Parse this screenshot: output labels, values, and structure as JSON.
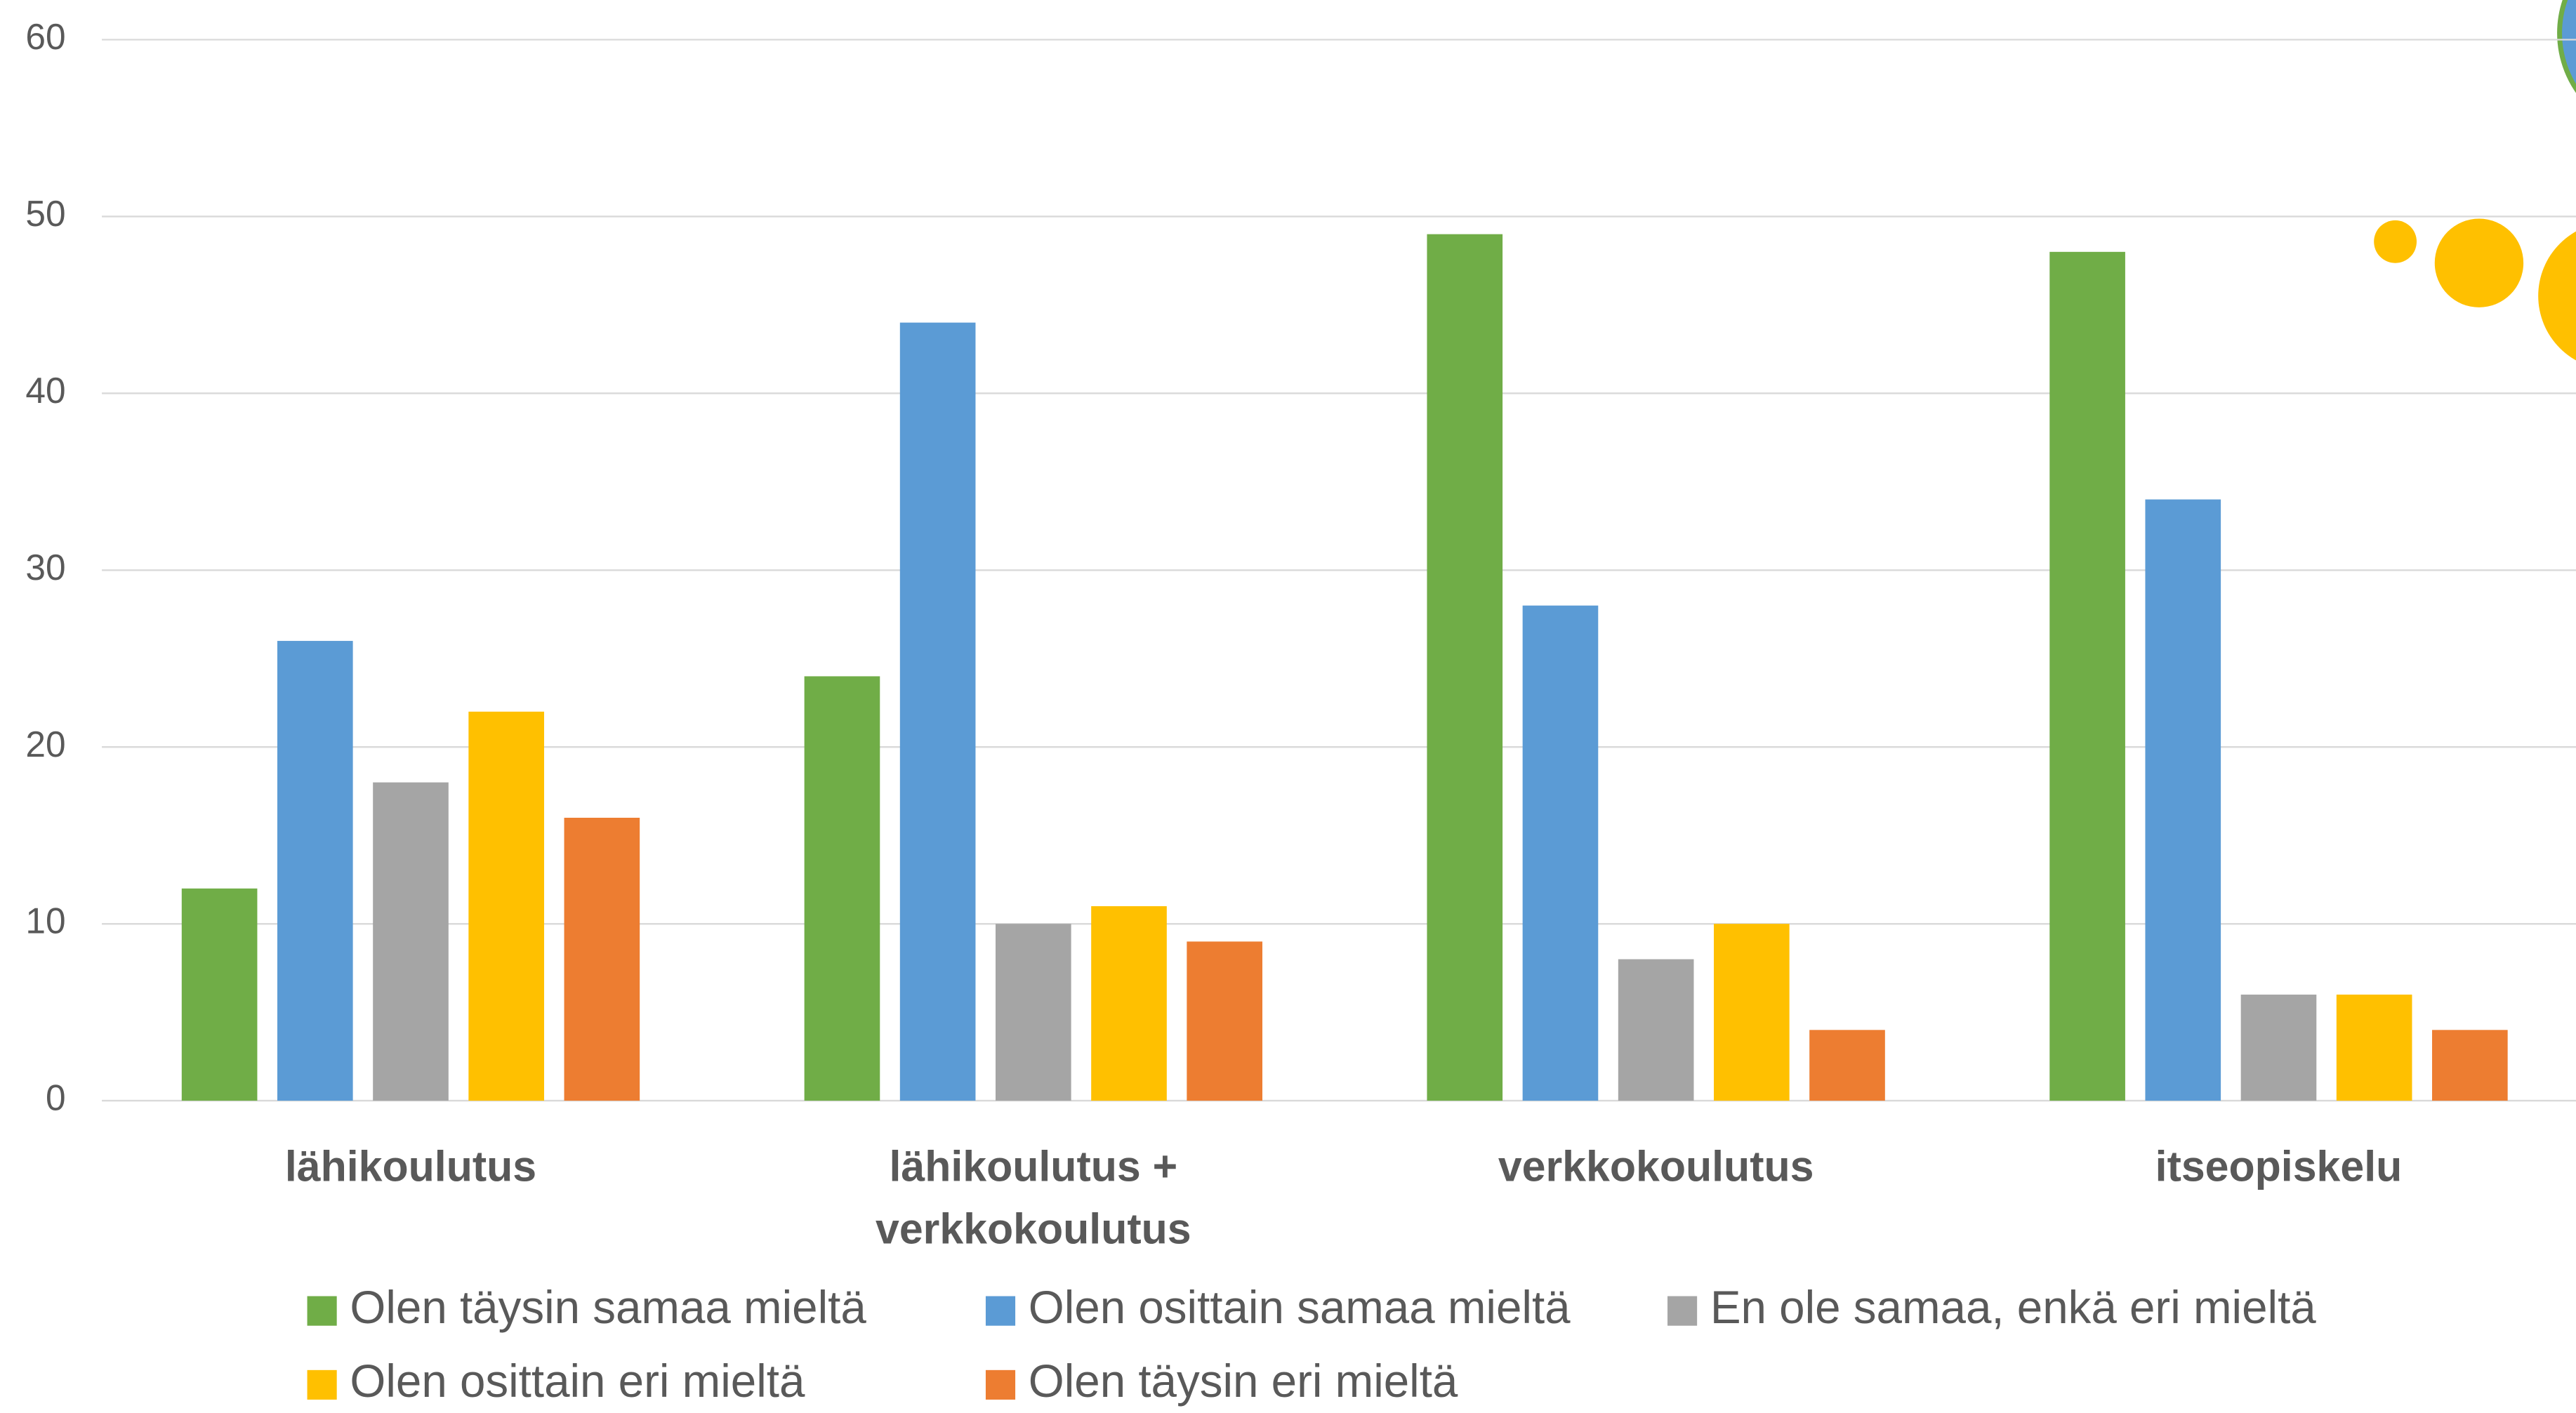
{
  "chart_data": {
    "type": "bar",
    "categories": [
      "lähikoulutus",
      "lähikoulutus + verkkokoulutus",
      "verkkokoulutus",
      "itseopiskelu"
    ],
    "series": [
      {
        "name": "Olen täysin samaa mieltä",
        "color": "#70ad47",
        "values": [
          12,
          24,
          49,
          48
        ]
      },
      {
        "name": "Olen osittain samaa mieltä",
        "color": "#5b9bd5",
        "values": [
          26,
          44,
          28,
          34
        ]
      },
      {
        "name": "En ole samaa, enkä eri mieltä",
        "color": "#a5a5a5",
        "values": [
          18,
          10,
          8,
          6
        ]
      },
      {
        "name": "Olen osittain eri mieltä",
        "color": "#ffc000",
        "values": [
          22,
          11,
          10,
          6
        ]
      },
      {
        "name": "Olen täysin eri mieltä",
        "color": "#ed7d31",
        "values": [
          16,
          9,
          4,
          4
        ]
      }
    ],
    "ylim": [
      0,
      60
    ],
    "yticks": [
      0,
      10,
      20,
      30,
      40,
      50,
      60
    ],
    "grid": true,
    "legend": "bottom"
  }
}
